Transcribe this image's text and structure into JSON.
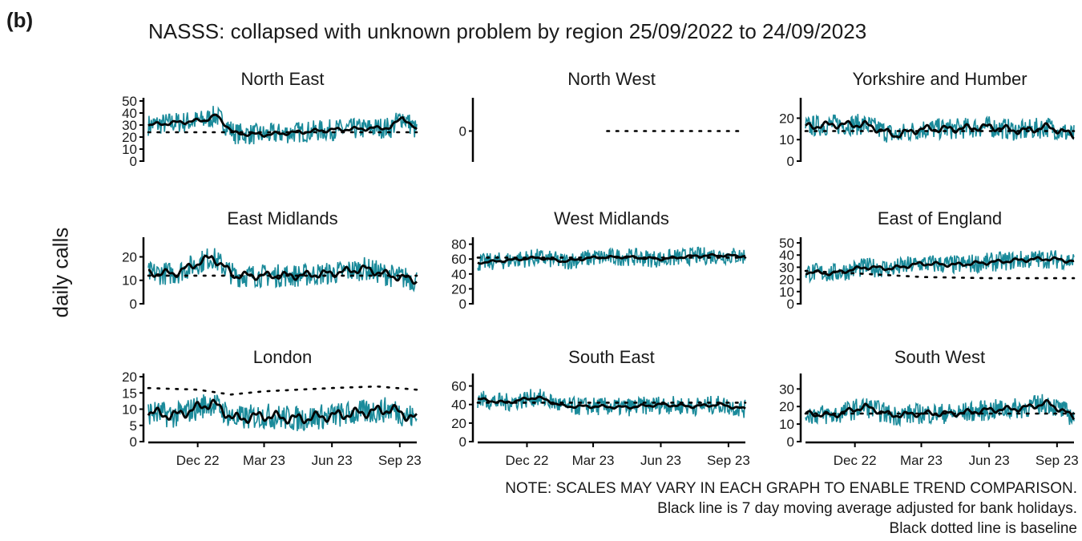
{
  "panel_label": "(b)",
  "title": "NASSS: collapsed with unknown problem by region 25/09/2022 to 24/09/2023",
  "ylabel": "daily calls",
  "notes": [
    "NOTE: SCALES MAY VARY IN EACH GRAPH TO ENABLE TREND COMPARISON.",
    "Black line is 7 day moving average adjusted for bank holidays.",
    "Black dotted line is baseline"
  ],
  "colors": {
    "daily": "#1a8a9a",
    "average": "#000000",
    "baseline": "#000000",
    "axis": "#000000"
  },
  "chart_data": [
    {
      "type": "line",
      "title": "North East",
      "x_start": "2022-09-25",
      "x_end": "2023-09-24",
      "ylim": [
        0,
        50
      ],
      "yticks": [
        0,
        10,
        20,
        30,
        40,
        50
      ],
      "xticks": [],
      "xtick_labels": [],
      "series": [
        {
          "role": "daily",
          "x": [
            "2022-09-25",
            "2022-11-01",
            "2022-12-10",
            "2022-12-26",
            "2023-01-20",
            "2023-03-01",
            "2023-04-15",
            "2023-06-01",
            "2023-07-15",
            "2023-08-20",
            "2023-09-05",
            "2023-09-24"
          ],
          "y": [
            30,
            32,
            34,
            38,
            23,
            22,
            24,
            26,
            27,
            28,
            37,
            25
          ],
          "noise": 9
        },
        {
          "role": "average",
          "x": [
            "2022-09-25",
            "2022-11-01",
            "2022-12-10",
            "2022-12-26",
            "2023-01-20",
            "2023-03-01",
            "2023-04-15",
            "2023-06-01",
            "2023-07-15",
            "2023-08-20",
            "2023-09-05",
            "2023-09-24"
          ],
          "y": [
            30,
            32,
            34,
            38,
            23,
            22,
            24,
            26,
            27,
            28,
            37,
            25
          ]
        },
        {
          "role": "baseline",
          "x": [
            "2022-09-25",
            "2023-09-24"
          ],
          "y": [
            24,
            24
          ]
        }
      ]
    },
    {
      "type": "line",
      "title": "North West",
      "x_start": "2022-09-25",
      "x_end": "2023-09-24",
      "ylim": [
        -1,
        1
      ],
      "yticks": [
        0
      ],
      "xticks": [],
      "xtick_labels": [],
      "series": [
        {
          "role": "baseline",
          "x": [
            "2023-03-20",
            "2023-09-24"
          ],
          "y": [
            0,
            0
          ]
        }
      ]
    },
    {
      "type": "line",
      "title": "Yorkshire and Humber",
      "x_start": "2022-09-25",
      "x_end": "2023-09-24",
      "ylim": [
        0,
        28
      ],
      "yticks": [
        0,
        10,
        20
      ],
      "xticks": [],
      "xtick_labels": [],
      "series": [
        {
          "role": "daily",
          "x": [
            "2022-09-25",
            "2022-11-01",
            "2022-12-15",
            "2023-01-25",
            "2023-03-01",
            "2023-04-15",
            "2023-06-01",
            "2023-07-15",
            "2023-08-20",
            "2023-09-24"
          ],
          "y": [
            16,
            17,
            17,
            12,
            15,
            15,
            16,
            14,
            16,
            12
          ],
          "noise": 5
        },
        {
          "role": "average",
          "x": [
            "2022-09-25",
            "2022-11-01",
            "2022-12-15",
            "2023-01-25",
            "2023-03-01",
            "2023-04-15",
            "2023-06-01",
            "2023-07-15",
            "2023-08-20",
            "2023-09-24"
          ],
          "y": [
            16,
            17,
            17,
            12,
            15,
            15,
            16,
            14,
            16,
            12
          ]
        },
        {
          "role": "baseline",
          "x": [
            "2022-09-25",
            "2023-09-24"
          ],
          "y": [
            14,
            14
          ]
        }
      ]
    },
    {
      "type": "line",
      "title": "East Midlands",
      "x_start": "2022-09-25",
      "x_end": "2023-09-24",
      "ylim": [
        0,
        27
      ],
      "yticks": [
        0,
        10,
        20
      ],
      "xticks": [],
      "xtick_labels": [],
      "series": [
        {
          "role": "daily",
          "x": [
            "2022-09-25",
            "2022-11-01",
            "2022-12-20",
            "2023-01-20",
            "2023-03-01",
            "2023-04-15",
            "2023-06-01",
            "2023-07-15",
            "2023-08-20",
            "2023-09-24"
          ],
          "y": [
            13,
            13,
            20,
            12,
            12,
            12,
            13,
            15,
            12,
            10
          ],
          "noise": 5
        },
        {
          "role": "average",
          "x": [
            "2022-09-25",
            "2022-11-01",
            "2022-12-20",
            "2023-01-20",
            "2023-03-01",
            "2023-04-15",
            "2023-06-01",
            "2023-07-15",
            "2023-08-20",
            "2023-09-24"
          ],
          "y": [
            13,
            13,
            20,
            12,
            12,
            12,
            13,
            15,
            12,
            10
          ]
        },
        {
          "role": "baseline",
          "x": [
            "2022-09-25",
            "2023-09-24"
          ],
          "y": [
            12,
            12
          ]
        }
      ]
    },
    {
      "type": "line",
      "title": "West Midlands",
      "x_start": "2022-09-25",
      "x_end": "2023-09-24",
      "ylim": [
        0,
        85
      ],
      "yticks": [
        0,
        20,
        40,
        60,
        80
      ],
      "xticks": [],
      "xtick_labels": [],
      "series": [
        {
          "role": "daily",
          "x": [
            "2022-09-25",
            "2022-11-01",
            "2022-12-15",
            "2023-01-20",
            "2023-03-01",
            "2023-04-15",
            "2023-06-01",
            "2023-07-15",
            "2023-08-20",
            "2023-09-24"
          ],
          "y": [
            55,
            58,
            62,
            57,
            62,
            63,
            60,
            64,
            65,
            64
          ],
          "noise": 12
        },
        {
          "role": "average",
          "x": [
            "2022-09-25",
            "2022-11-01",
            "2022-12-15",
            "2023-01-20",
            "2023-03-01",
            "2023-04-15",
            "2023-06-01",
            "2023-07-15",
            "2023-08-20",
            "2023-09-24"
          ],
          "y": [
            55,
            58,
            62,
            57,
            62,
            63,
            60,
            64,
            65,
            64
          ]
        },
        {
          "role": "baseline",
          "x": [
            "2022-09-25",
            "2023-09-24"
          ],
          "y": [
            62,
            62
          ]
        }
      ]
    },
    {
      "type": "line",
      "title": "East of England",
      "x_start": "2022-09-25",
      "x_end": "2023-09-24",
      "ylim": [
        0,
        52
      ],
      "yticks": [
        0,
        10,
        20,
        30,
        40,
        50
      ],
      "xticks": [],
      "xtick_labels": [],
      "series": [
        {
          "role": "daily",
          "x": [
            "2022-09-25",
            "2022-11-01",
            "2022-12-15",
            "2023-01-20",
            "2023-03-01",
            "2023-04-15",
            "2023-06-01",
            "2023-07-15",
            "2023-08-20",
            "2023-09-24"
          ],
          "y": [
            26,
            25,
            30,
            29,
            33,
            32,
            34,
            36,
            37,
            35
          ],
          "noise": 8
        },
        {
          "role": "average",
          "x": [
            "2022-09-25",
            "2022-11-01",
            "2022-12-15",
            "2023-01-20",
            "2023-03-01",
            "2023-04-15",
            "2023-06-01",
            "2023-07-15",
            "2023-08-20",
            "2023-09-24"
          ],
          "y": [
            26,
            25,
            30,
            29,
            33,
            32,
            34,
            36,
            37,
            35
          ]
        },
        {
          "role": "baseline",
          "x": [
            "2022-09-25",
            "2022-12-01",
            "2023-03-01",
            "2023-06-01",
            "2023-09-24"
          ],
          "y": [
            27,
            25,
            22,
            21,
            21
          ]
        }
      ]
    },
    {
      "type": "line",
      "title": "London",
      "x_start": "2022-09-25",
      "x_end": "2023-09-24",
      "ylim": [
        0,
        20
      ],
      "yticks": [
        0,
        5,
        10,
        15,
        20
      ],
      "xticks": [
        "2022-12-01",
        "2023-03-01",
        "2023-06-01",
        "2023-09-01"
      ],
      "xtick_labels": [
        "Dec 22",
        "Mar 23",
        "Jun 23",
        "Sep 23"
      ],
      "series": [
        {
          "role": "daily",
          "x": [
            "2022-09-25",
            "2022-11-01",
            "2022-12-20",
            "2023-01-20",
            "2023-03-01",
            "2023-04-15",
            "2023-06-01",
            "2023-07-15",
            "2023-08-20",
            "2023-09-24"
          ],
          "y": [
            9,
            8,
            12,
            7,
            8,
            7,
            8,
            9,
            10,
            7
          ],
          "noise": 4
        },
        {
          "role": "average",
          "x": [
            "2022-09-25",
            "2022-11-01",
            "2022-12-20",
            "2023-01-20",
            "2023-03-01",
            "2023-04-15",
            "2023-06-01",
            "2023-07-15",
            "2023-08-20",
            "2023-09-24"
          ],
          "y": [
            9,
            8,
            12,
            7,
            8,
            7,
            8,
            9,
            10,
            7
          ]
        },
        {
          "role": "baseline",
          "x": [
            "2022-09-25",
            "2022-12-01",
            "2023-01-15",
            "2023-03-01",
            "2023-06-01",
            "2023-08-01",
            "2023-09-24"
          ],
          "y": [
            16.5,
            16,
            14.5,
            15.5,
            16.5,
            17,
            16
          ]
        }
      ]
    },
    {
      "type": "line",
      "title": "South East",
      "x_start": "2022-09-25",
      "x_end": "2023-09-24",
      "ylim": [
        0,
        70
      ],
      "yticks": [
        0,
        20,
        40,
        60
      ],
      "xticks": [
        "2022-12-01",
        "2023-03-01",
        "2023-06-01",
        "2023-09-01"
      ],
      "xtick_labels": [
        "Dec 22",
        "Mar 23",
        "Jun 23",
        "Sep 23"
      ],
      "series": [
        {
          "role": "daily",
          "x": [
            "2022-09-25",
            "2022-11-01",
            "2022-12-15",
            "2023-01-20",
            "2023-03-01",
            "2023-04-15",
            "2023-06-01",
            "2023-07-15",
            "2023-08-20",
            "2023-09-24"
          ],
          "y": [
            46,
            42,
            48,
            38,
            38,
            37,
            40,
            38,
            40,
            35
          ],
          "noise": 10
        },
        {
          "role": "average",
          "x": [
            "2022-09-25",
            "2022-11-01",
            "2022-12-15",
            "2023-01-20",
            "2023-03-01",
            "2023-04-15",
            "2023-06-01",
            "2023-07-15",
            "2023-08-20",
            "2023-09-24"
          ],
          "y": [
            46,
            42,
            48,
            38,
            38,
            37,
            40,
            38,
            40,
            35
          ]
        },
        {
          "role": "baseline",
          "x": [
            "2022-09-25",
            "2023-09-24"
          ],
          "y": [
            42,
            42
          ]
        }
      ]
    },
    {
      "type": "line",
      "title": "South West",
      "x_start": "2022-09-25",
      "x_end": "2023-09-24",
      "ylim": [
        0,
        37
      ],
      "yticks": [
        0,
        10,
        20,
        30
      ],
      "xticks": [
        "2022-12-01",
        "2023-03-01",
        "2023-06-01",
        "2023-09-01"
      ],
      "xtick_labels": [
        "Dec 22",
        "Mar 23",
        "Jun 23",
        "Sep 23"
      ],
      "series": [
        {
          "role": "daily",
          "x": [
            "2022-09-25",
            "2022-11-01",
            "2022-12-15",
            "2023-01-20",
            "2023-03-01",
            "2023-04-15",
            "2023-06-01",
            "2023-07-15",
            "2023-08-20",
            "2023-09-24"
          ],
          "y": [
            16,
            15,
            20,
            15,
            16,
            16,
            18,
            19,
            22,
            14
          ],
          "noise": 6
        },
        {
          "role": "average",
          "x": [
            "2022-09-25",
            "2022-11-01",
            "2022-12-15",
            "2023-01-20",
            "2023-03-01",
            "2023-04-15",
            "2023-06-01",
            "2023-07-15",
            "2023-08-20",
            "2023-09-24"
          ],
          "y": [
            16,
            15,
            20,
            15,
            16,
            16,
            18,
            19,
            22,
            14
          ]
        },
        {
          "role": "baseline",
          "x": [
            "2022-09-25",
            "2023-09-24"
          ],
          "y": [
            16,
            16
          ]
        }
      ]
    }
  ]
}
